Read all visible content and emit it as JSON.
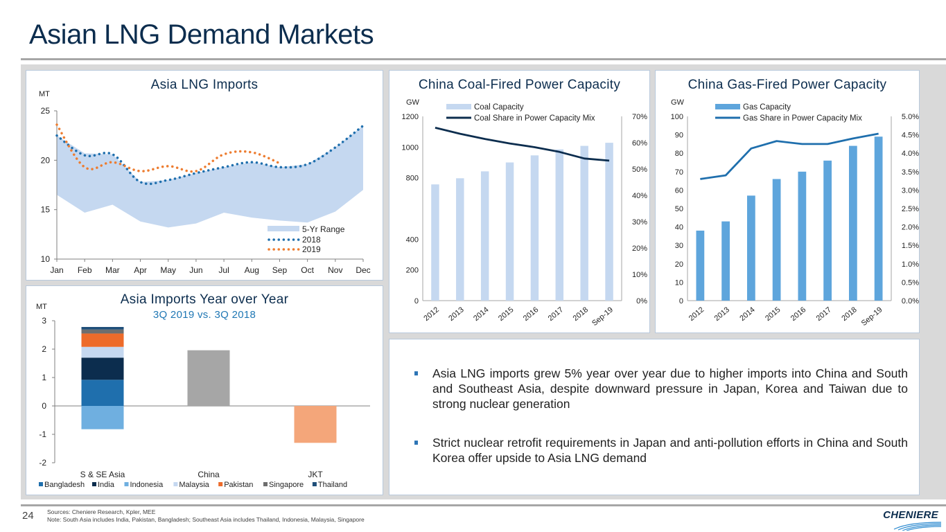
{
  "page": {
    "title": "Asian LNG Demand Markets",
    "page_number": "24",
    "sources": "Sources: Cheniere Research, Kpler, MEE",
    "note": "Note: South Asia includes India, Pakistan, Bangladesh; Southeast Asia includes Thailand, Indonesia, Malaysia, Singapore",
    "logo_text": "CHENIERE"
  },
  "bullets": [
    "Asia LNG imports grew 5% year over year due to higher imports into China and South and Southeast Asia, despite downward pressure in Japan, Korea and Taiwan due to strong nuclear generation",
    "Strict nuclear retrofit requirements in Japan and anti-pollution efforts in China and South Korea offer upside to Asia LNG demand"
  ],
  "colors": {
    "range": "#c5d8f0",
    "series2018": "#1f6fad",
    "series2019": "#ed7d31",
    "coal_bar": "#c5d8f0",
    "coal_line": "#0c2d4e",
    "gas_bar": "#5ea5dc",
    "gas_line": "#1f6fad"
  },
  "chart_data": [
    {
      "id": "asia-lng-imports",
      "type": "area",
      "title": "Asia LNG Imports",
      "ylabel": "MT",
      "xlabel": "",
      "categories": [
        "Jan",
        "Feb",
        "Mar",
        "Apr",
        "May",
        "Jun",
        "Jul",
        "Aug",
        "Sep",
        "Oct",
        "Nov",
        "Dec"
      ],
      "ylim": [
        10,
        25
      ],
      "yticks": [
        10,
        15,
        20,
        25
      ],
      "series": [
        {
          "name": "5-Yr Range",
          "kind": "range",
          "low": [
            16.5,
            14.7,
            15.5,
            13.8,
            13.2,
            13.6,
            14.7,
            14.2,
            13.9,
            13.7,
            14.8,
            17.0
          ],
          "high": [
            22.5,
            20.7,
            20.6,
            17.8,
            18.0,
            18.7,
            19.3,
            19.8,
            19.3,
            19.6,
            21.3,
            23.5
          ]
        },
        {
          "name": "2018",
          "kind": "line",
          "values": [
            22.5,
            20.5,
            20.6,
            17.8,
            18.0,
            18.7,
            19.3,
            19.8,
            19.3,
            19.6,
            21.3,
            23.5
          ]
        },
        {
          "name": "2019",
          "kind": "line",
          "values": [
            23.6,
            19.3,
            19.8,
            18.9,
            19.4,
            18.9,
            20.6,
            20.8,
            19.7,
            null,
            null,
            null
          ]
        }
      ],
      "legend": "bottom-right",
      "grid": false
    },
    {
      "id": "asia-imports-yoy",
      "type": "bar",
      "stacked": true,
      "title": "Asia Imports Year over Year",
      "subtitle": "3Q 2019 vs. 3Q 2018",
      "ylabel": "MT",
      "categories": [
        "S & SE Asia",
        "China",
        "JKT"
      ],
      "ylim": [
        -2,
        3
      ],
      "yticks": [
        -2,
        -1,
        0,
        1,
        2,
        3
      ],
      "series": [
        {
          "name": "Bangladesh",
          "color": "#1f6fad",
          "values": [
            0.92,
            0,
            0
          ]
        },
        {
          "name": "India",
          "color": "#0c2d4e",
          "values": [
            0.78,
            0,
            0
          ]
        },
        {
          "name": "Indonesia",
          "color": "#6fafe0",
          "values": [
            -0.82,
            0,
            0
          ]
        },
        {
          "name": "Malaysia",
          "color": "#c5d8f0",
          "values": [
            0.38,
            0,
            0
          ]
        },
        {
          "name": "Pakistan",
          "color": "#ed6b2a",
          "values": [
            0.47,
            0,
            0
          ]
        },
        {
          "name": "Singapore",
          "color": "#6e6e6e",
          "values": [
            0.14,
            0,
            0
          ]
        },
        {
          "name": "Thailand",
          "color": "#1f4e79",
          "values": [
            0.09,
            0,
            0
          ]
        },
        {
          "name": "China",
          "color": "#a6a6a6",
          "values": [
            0,
            1.96,
            0
          ],
          "legend": false
        },
        {
          "name": "JKT",
          "color": "#f4a67a",
          "values": [
            0,
            0,
            -1.3
          ],
          "legend": false
        }
      ],
      "legend": "bottom",
      "grid": false
    },
    {
      "id": "china-coal-capacity",
      "type": "bar",
      "title": "China Coal-Fired Power Capacity",
      "ylabel": "GW",
      "y2label": "",
      "categories": [
        "2012",
        "2013",
        "2014",
        "2015",
        "2016",
        "2017",
        "2018",
        "Sep-19"
      ],
      "ylim": [
        0,
        1200
      ],
      "yticks": [
        0,
        200,
        400,
        800,
        1000,
        1200
      ],
      "y2lim": [
        0,
        0.7
      ],
      "y2ticks": [
        "0%",
        "10%",
        "20%",
        "30%",
        "40%",
        "50%",
        "60%",
        "70%"
      ],
      "series": [
        {
          "name": "Coal Capacity",
          "kind": "bar",
          "axis": "left",
          "values": [
            757,
            797,
            842,
            900,
            946,
            985,
            1008,
            1028
          ]
        },
        {
          "name": "Coal Share in Power Capacity Mix",
          "kind": "line",
          "axis": "right",
          "values": [
            0.657,
            0.634,
            0.614,
            0.597,
            0.583,
            0.565,
            0.54,
            0.532
          ]
        }
      ],
      "legend": "top",
      "grid": false
    },
    {
      "id": "china-gas-capacity",
      "type": "bar",
      "title": "China Gas-Fired Power Capacity",
      "ylabel": "GW",
      "categories": [
        "2012",
        "2013",
        "2014",
        "2015",
        "2016",
        "2017",
        "2018",
        "Sep-19"
      ],
      "ylim": [
        0,
        100
      ],
      "yticks": [
        0,
        10,
        20,
        30,
        40,
        50,
        60,
        70,
        80,
        90,
        100
      ],
      "y2lim": [
        0,
        0.05
      ],
      "y2ticks": [
        "0.0%",
        "0.5%",
        "1.0%",
        "1.5%",
        "2.0%",
        "2.5%",
        "3.0%",
        "3.5%",
        "4.0%",
        "4.5%",
        "5.0%"
      ],
      "series": [
        {
          "name": "Gas Capacity",
          "kind": "bar",
          "axis": "left",
          "values": [
            38,
            43,
            57,
            66,
            70,
            76,
            84,
            89
          ]
        },
        {
          "name": "Gas Share in Power Capacity Mix",
          "kind": "line",
          "axis": "right",
          "values": [
            0.033,
            0.034,
            0.0413,
            0.0433,
            0.0425,
            0.0425,
            0.044,
            0.0453
          ]
        }
      ],
      "legend": "top",
      "grid": false
    }
  ]
}
